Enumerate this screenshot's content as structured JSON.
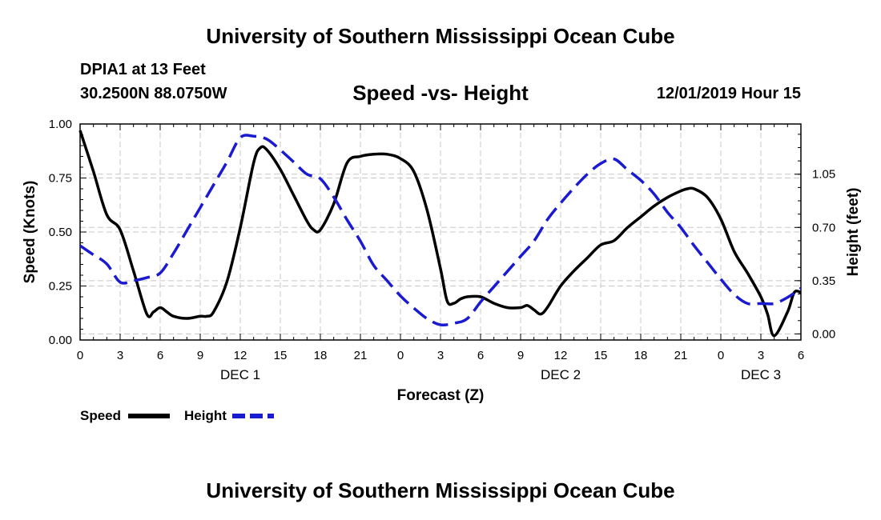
{
  "header": {
    "title": "University of Southern Mississippi Ocean Cube",
    "station": "DPIA1 at 13 Feet",
    "coords": "30.2500N 88.0750W",
    "subtitle": "Speed -vs- Height",
    "datetime": "12/01/2019 Hour 15"
  },
  "footer": {
    "title": "University of Southern Mississippi Ocean Cube"
  },
  "legend": {
    "speed_label": "Speed",
    "height_label": "Height"
  },
  "colors": {
    "speed": "#000000",
    "height": "#1a1ad0",
    "grid": "#c8c8c8"
  },
  "chart_data": {
    "type": "line",
    "title": "Speed -vs- Height",
    "xlabel": "Forecast (Z)",
    "ylabel": "Speed (Knots)",
    "y2label": "Height (feet)",
    "xlim": [
      0,
      54
    ],
    "ylim": [
      0,
      1.0
    ],
    "y2lim": [
      -0.04,
      1.38
    ],
    "x_ticks": [
      {
        "x": 0,
        "label": "0"
      },
      {
        "x": 3,
        "label": "3"
      },
      {
        "x": 6,
        "label": "6"
      },
      {
        "x": 9,
        "label": "9"
      },
      {
        "x": 12,
        "label": "12"
      },
      {
        "x": 15,
        "label": "15"
      },
      {
        "x": 18,
        "label": "18"
      },
      {
        "x": 21,
        "label": "21"
      },
      {
        "x": 24,
        "label": "0"
      },
      {
        "x": 27,
        "label": "3"
      },
      {
        "x": 30,
        "label": "6"
      },
      {
        "x": 33,
        "label": "9"
      },
      {
        "x": 36,
        "label": "12"
      },
      {
        "x": 39,
        "label": "15"
      },
      {
        "x": 42,
        "label": "18"
      },
      {
        "x": 45,
        "label": "21"
      },
      {
        "x": 48,
        "label": "0"
      },
      {
        "x": 51,
        "label": "3"
      },
      {
        "x": 54,
        "label": "6"
      }
    ],
    "date_labels": [
      {
        "x": 12,
        "label": "DEC 1"
      },
      {
        "x": 36,
        "label": "DEC 2"
      },
      {
        "x": 51,
        "label": "DEC 3"
      }
    ],
    "y_ticks": [
      "0.00",
      "0.25",
      "0.50",
      "0.75",
      "1.00"
    ],
    "y2_ticks": [
      {
        "value": 0.0,
        "label": "0.00"
      },
      {
        "value": 0.35,
        "label": "0.35"
      },
      {
        "value": 0.7,
        "label": "0.70"
      },
      {
        "value": 1.05,
        "label": "1.05"
      }
    ],
    "series": [
      {
        "name": "Speed",
        "axis": "left",
        "style": "solid",
        "x": [
          0,
          1,
          2,
          3,
          4,
          5,
          5.5,
          6,
          6.5,
          7,
          8,
          9,
          9.5,
          10,
          11,
          12,
          13,
          13.5,
          14,
          15,
          16,
          17,
          17.5,
          18,
          19,
          20,
          21,
          22,
          23,
          24,
          25,
          26,
          27,
          27.5,
          28,
          28.5,
          29,
          30,
          31,
          32,
          33,
          33.5,
          34,
          34.5,
          35,
          36,
          37,
          38,
          39,
          40,
          41,
          42,
          43,
          44,
          45,
          45.5,
          46,
          47,
          48,
          49,
          50,
          51,
          51.5,
          52,
          53,
          53.5,
          54
        ],
        "values": [
          0.97,
          0.78,
          0.58,
          0.51,
          0.32,
          0.12,
          0.13,
          0.15,
          0.13,
          0.11,
          0.1,
          0.11,
          0.11,
          0.13,
          0.27,
          0.52,
          0.82,
          0.89,
          0.88,
          0.79,
          0.67,
          0.55,
          0.51,
          0.51,
          0.63,
          0.82,
          0.85,
          0.86,
          0.86,
          0.84,
          0.78,
          0.6,
          0.33,
          0.18,
          0.17,
          0.19,
          0.2,
          0.2,
          0.17,
          0.15,
          0.15,
          0.16,
          0.14,
          0.12,
          0.15,
          0.25,
          0.32,
          0.38,
          0.44,
          0.46,
          0.52,
          0.57,
          0.62,
          0.66,
          0.69,
          0.7,
          0.7,
          0.66,
          0.56,
          0.41,
          0.31,
          0.2,
          0.12,
          0.02,
          0.13,
          0.22,
          0.22
        ]
      },
      {
        "name": "Height",
        "axis": "right",
        "style": "dashed",
        "x": [
          0,
          1,
          2,
          3,
          4,
          5,
          6,
          7,
          8,
          9,
          10,
          11,
          12,
          13,
          14,
          15,
          16,
          17,
          18,
          19,
          20,
          21,
          22,
          23,
          24,
          25,
          26,
          27,
          28,
          29,
          30,
          31,
          32,
          33,
          34,
          35,
          36,
          37,
          38,
          39,
          40,
          41,
          42,
          43,
          44,
          45,
          46,
          47,
          48,
          49,
          50,
          51,
          52,
          53,
          54
        ],
        "values": [
          0.58,
          0.52,
          0.46,
          0.34,
          0.35,
          0.37,
          0.4,
          0.53,
          0.68,
          0.83,
          0.98,
          1.13,
          1.29,
          1.3,
          1.28,
          1.21,
          1.13,
          1.05,
          1.02,
          0.9,
          0.75,
          0.61,
          0.45,
          0.35,
          0.25,
          0.17,
          0.1,
          0.06,
          0.07,
          0.1,
          0.21,
          0.31,
          0.41,
          0.51,
          0.61,
          0.75,
          0.86,
          0.96,
          1.05,
          1.12,
          1.15,
          1.08,
          1.01,
          0.92,
          0.8,
          0.7,
          0.58,
          0.47,
          0.36,
          0.26,
          0.2,
          0.2,
          0.2,
          0.24,
          0.3
        ]
      }
    ]
  }
}
